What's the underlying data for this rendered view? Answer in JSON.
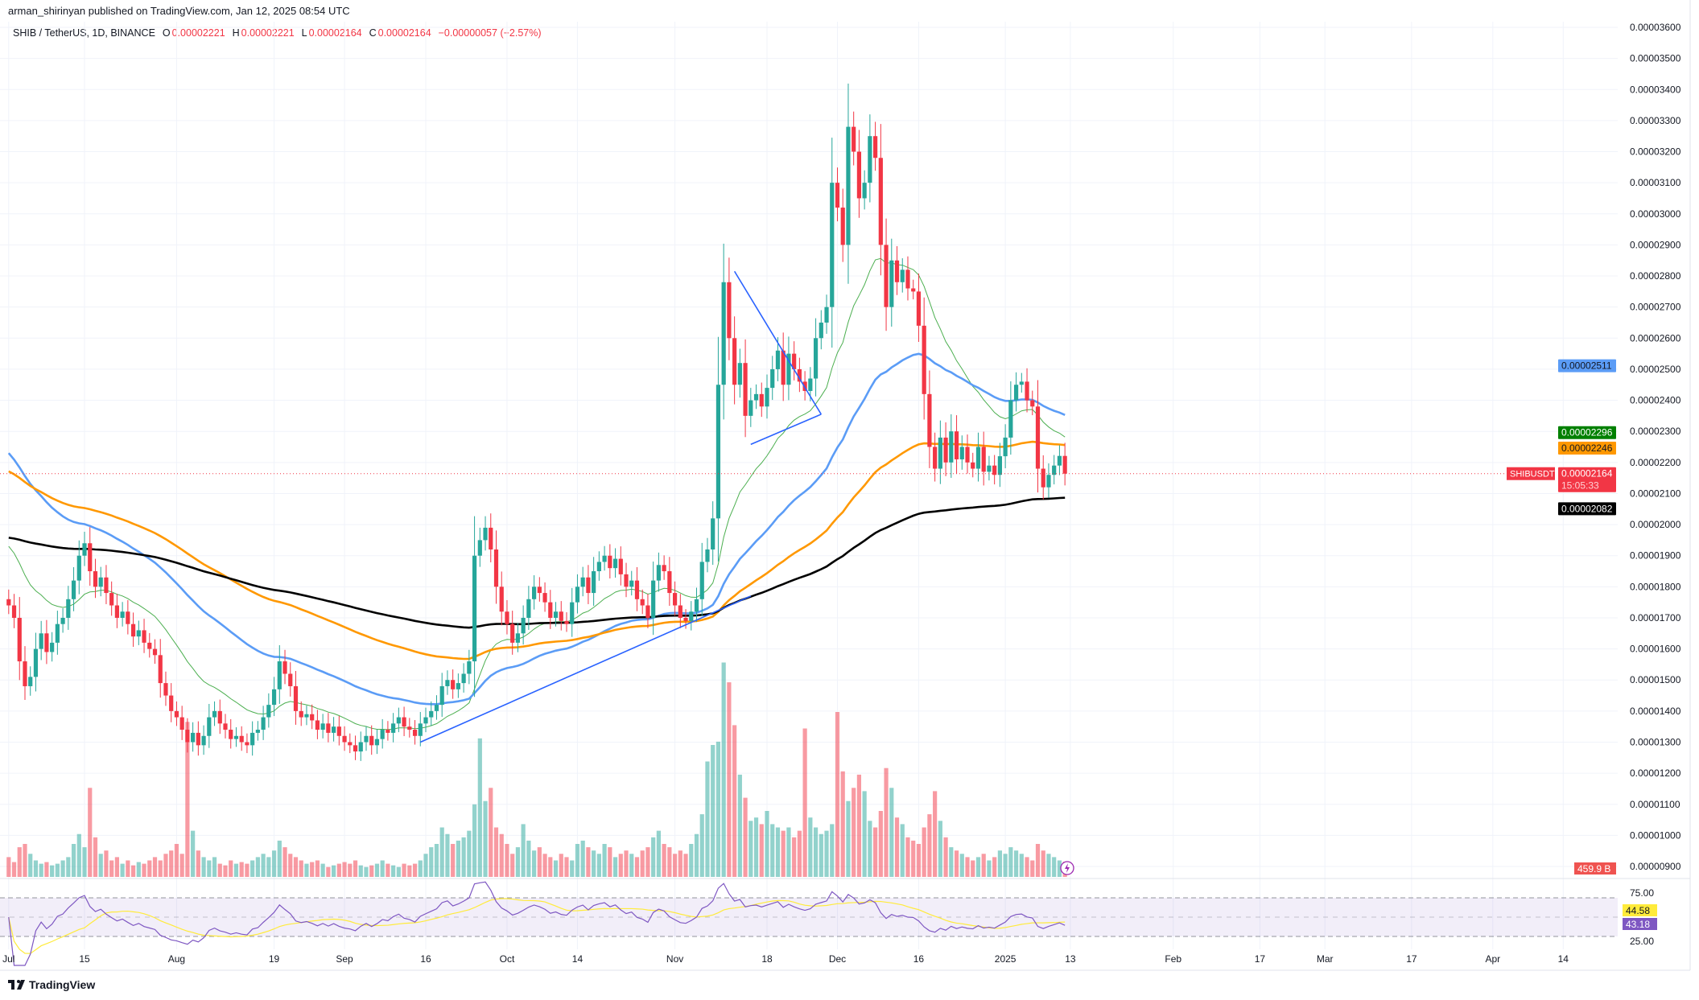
{
  "header": {
    "author_line": "arman_shirinyan published on TradingView.com, Jan 12, 2025 08:54 UTC",
    "symbol": "SHIB / TetherUS, 1D, BINANCE",
    "o_label": "O",
    "o_value": "0.00002221",
    "h_label": "H",
    "h_value": "0.00002221",
    "l_label": "L",
    "l_value": "0.00002164",
    "c_label": "C",
    "c_value": "0.00002164",
    "change": "−0.00000057 (−2.57%)"
  },
  "footer": {
    "logo_text": "TradingView"
  },
  "colors": {
    "up": "#26a69a",
    "down": "#f23645",
    "ma_fast": "#4caf50",
    "ma_blue": "#5b9cf6",
    "ma_orange": "#ff9800",
    "ma_black": "#000000",
    "rsi": "#7e57c2",
    "rsi_ma": "#ffeb3b",
    "drawing": "#2962ff"
  },
  "chart_data": {
    "type": "candlestick",
    "title": "SHIB / TetherUS, 1D, BINANCE",
    "price_unit": "1e-8 USDT",
    "start_date": "2024-07-01",
    "ylim": [
      900,
      3600
    ],
    "y_tick_labels": [
      "0.00003600",
      "0.00003500",
      "0.00003400",
      "0.00003300",
      "0.00003200",
      "0.00003100",
      "0.00003000",
      "0.00002900",
      "0.00002800",
      "0.00002700",
      "0.00002600",
      "0.00002500",
      "0.00002400",
      "0.00002300",
      "0.00002200",
      "0.00002100",
      "0.00002000",
      "0.00001900",
      "0.00001800",
      "0.00001700",
      "0.00001600",
      "0.00001500",
      "0.00001400",
      "0.00001300",
      "0.00001200",
      "0.00001100",
      "0.00001000",
      "0.00000900"
    ],
    "x_ticks": [
      {
        "label": "Jul",
        "day": 0
      },
      {
        "label": "15",
        "day": 14
      },
      {
        "label": "Aug",
        "day": 31
      },
      {
        "label": "19",
        "day": 49
      },
      {
        "label": "Sep",
        "day": 62
      },
      {
        "label": "16",
        "day": 77
      },
      {
        "label": "Oct",
        "day": 92
      },
      {
        "label": "14",
        "day": 105
      },
      {
        "label": "Nov",
        "day": 123
      },
      {
        "label": "18",
        "day": 140
      },
      {
        "label": "Dec",
        "day": 153
      },
      {
        "label": "16",
        "day": 168
      },
      {
        "label": "2025",
        "day": 184
      },
      {
        "label": "13",
        "day": 196
      },
      {
        "label": "Feb",
        "day": 215
      },
      {
        "label": "17",
        "day": 231
      },
      {
        "label": "Mar",
        "day": 243
      },
      {
        "label": "17",
        "day": 259
      },
      {
        "label": "Apr",
        "day": 274
      },
      {
        "label": "14",
        "day": 287
      }
    ],
    "close": [
      1740,
      1700,
      1560,
      1480,
      1510,
      1600,
      1650,
      1590,
      1620,
      1680,
      1700,
      1760,
      1820,
      1900,
      1940,
      1850,
      1800,
      1830,
      1780,
      1740,
      1700,
      1720,
      1680,
      1640,
      1660,
      1620,
      1600,
      1580,
      1490,
      1450,
      1400,
      1380,
      1340,
      1300,
      1330,
      1290,
      1320,
      1380,
      1400,
      1360,
      1340,
      1310,
      1320,
      1300,
      1290,
      1330,
      1340,
      1380,
      1420,
      1470,
      1560,
      1520,
      1480,
      1400,
      1380,
      1390,
      1370,
      1340,
      1360,
      1330,
      1350,
      1320,
      1300,
      1290,
      1270,
      1300,
      1320,
      1290,
      1310,
      1340,
      1330,
      1360,
      1380,
      1350,
      1340,
      1320,
      1360,
      1380,
      1400,
      1420,
      1480,
      1500,
      1470,
      1490,
      1520,
      1560,
      1900,
      1950,
      1990,
      1920,
      1800,
      1720,
      1680,
      1620,
      1650,
      1700,
      1760,
      1800,
      1780,
      1750,
      1700,
      1720,
      1690,
      1680,
      1750,
      1800,
      1830,
      1780,
      1850,
      1880,
      1900,
      1860,
      1890,
      1840,
      1800,
      1820,
      1760,
      1740,
      1700,
      1820,
      1870,
      1850,
      1780,
      1740,
      1700,
      1690,
      1720,
      1760,
      1880,
      1920,
      2020,
      2450,
      2780,
      2600,
      2450,
      2520,
      2350,
      2400,
      2420,
      2380,
      2440,
      2500,
      2560,
      2450,
      2550,
      2500,
      2460,
      2430,
      2470,
      2600,
      2650,
      2700,
      3100,
      3020,
      2900,
      3280,
      3200,
      3050,
      3100,
      3250,
      3180,
      2900,
      2700,
      2850,
      2780,
      2820,
      2760,
      2750,
      2640,
      2420,
      2250,
      2180,
      2280,
      2200,
      2300,
      2210,
      2250,
      2200,
      2180,
      2250,
      2170,
      2190,
      2160,
      2220,
      2280,
      2400,
      2450,
      2460,
      2400,
      2380,
      2180,
      2120,
      2160,
      2190,
      2221,
      2164
    ],
    "volume_unit": "B",
    "volume": [
      600,
      450,
      900,
      1000,
      700,
      500,
      400,
      450,
      350,
      400,
      500,
      600,
      1000,
      1300,
      900,
      2700,
      1200,
      700,
      800,
      500,
      600,
      400,
      500,
      350,
      450,
      400,
      500,
      600,
      500,
      700,
      800,
      1000,
      700,
      4700,
      1400,
      800,
      600,
      500,
      600,
      400,
      350,
      500,
      400,
      450,
      400,
      500,
      600,
      700,
      600,
      800,
      1100,
      900,
      700,
      600,
      500,
      400,
      450,
      500,
      400,
      300,
      350,
      400,
      450,
      400,
      500,
      350,
      300,
      350,
      400,
      500,
      400,
      350,
      300,
      400,
      350,
      400,
      500,
      700,
      900,
      1000,
      1500,
      1300,
      1000,
      1100,
      1200,
      1400,
      2200,
      4200,
      2300,
      2700,
      1500,
      1300,
      1000,
      700,
      900,
      1600,
      1100,
      800,
      900,
      700,
      600,
      500,
      700,
      600,
      500,
      1000,
      1100,
      900,
      800,
      700,
      1000,
      900,
      600,
      700,
      800,
      700,
      600,
      800,
      900,
      1200,
      1400,
      1000,
      900,
      700,
      800,
      700,
      1000,
      1300,
      1900,
      3500,
      4000,
      4100,
      6500,
      5900,
      4600,
      3100,
      2400,
      1700,
      1800,
      1600,
      2000,
      1600,
      1500,
      1400,
      1500,
      1200,
      1400,
      4500,
      1800,
      1500,
      1300,
      1400,
      1600,
      5000,
      3200,
      2300,
      2700,
      3100,
      2600,
      1700,
      1500,
      2000,
      3300,
      2700,
      1800,
      1600,
      1200,
      1100,
      1000,
      1500,
      1900,
      2600,
      1700,
      1200,
      900,
      800,
      700,
      600,
      500,
      600,
      700,
      500,
      600,
      800,
      700,
      900,
      800,
      700,
      600,
      500,
      1000,
      800,
      700,
      600,
      500,
      460
    ],
    "moving_averages": [
      {
        "name": "MA fast",
        "period": 20,
        "seed": 1950,
        "color_key": "ma_fast",
        "last_label": "0.00002296"
      },
      {
        "name": "MA 50",
        "period": 50,
        "seed": 2250,
        "color_key": "ma_blue",
        "last_label": "0.00002511"
      },
      {
        "name": "MA 100",
        "period": 100,
        "seed": 2180,
        "color_key": "ma_orange",
        "last_label": "0.00002246"
      },
      {
        "name": "MA 200",
        "period": 200,
        "seed": 1960,
        "color_key": "ma_black",
        "last_label": "0.00002082"
      }
    ],
    "drawings": [
      {
        "name": "support-trendline",
        "from": [
          76,
          1300
        ],
        "to": [
          137,
          1770
        ]
      },
      {
        "name": "flag-upper-line",
        "from": [
          134,
          2815
        ],
        "to": [
          150,
          2355
        ]
      },
      {
        "name": "flag-lower-line",
        "from": [
          137,
          2258
        ],
        "to": [
          150,
          2355
        ]
      }
    ],
    "last_price": {
      "symbol_tag": "SHIBUSDT",
      "value": 2164,
      "label": "0.00002164",
      "countdown": "15:05:33"
    },
    "last_volume_label": "459.9 B",
    "rsi": {
      "period": 14,
      "ma_period": 14,
      "upper_band": 70,
      "lower_band": 30,
      "tick_labels": [
        "75.00",
        "25.00"
      ],
      "rsi_ma_label": "44.58",
      "rsi_label": "43.18"
    }
  }
}
